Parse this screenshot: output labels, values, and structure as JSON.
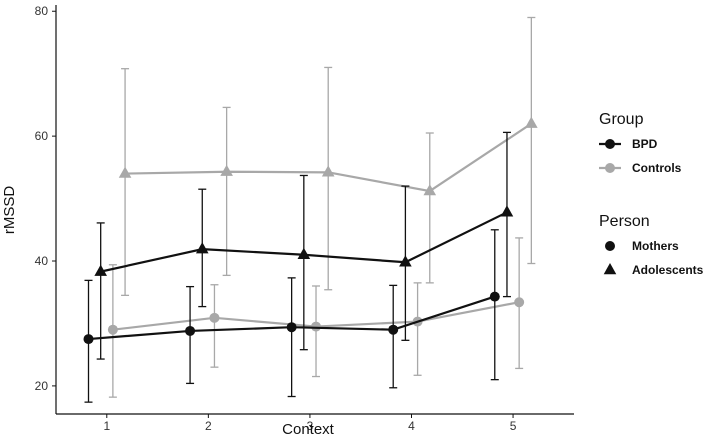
{
  "chart_data": {
    "type": "line",
    "xlabel": "Context",
    "ylabel": "rMSSD",
    "xlim": [
      0.5,
      5.6
    ],
    "ylim": [
      15.5,
      81
    ],
    "x_ticks": [
      1,
      2,
      3,
      4,
      5
    ],
    "y_ticks": [
      20,
      40,
      60,
      80
    ],
    "grid": false,
    "legend_placement": "right",
    "legends": [
      {
        "title": "Group",
        "entries": [
          {
            "label": "BPD",
            "color": "#111111",
            "shape": "circle",
            "line": true
          },
          {
            "label": "Controls",
            "color": "#a8a8a8",
            "shape": "circle",
            "line": true
          }
        ]
      },
      {
        "title": "Person",
        "entries": [
          {
            "label": "Mothers",
            "color": "#111111",
            "shape": "circle",
            "line": false
          },
          {
            "label": "Adolescents",
            "color": "#111111",
            "shape": "triangle",
            "line": false
          }
        ]
      }
    ],
    "series": [
      {
        "group": "Controls",
        "person": "Adolescents",
        "color": "#a8a8a8",
        "shape": "triangle",
        "x": [
          1.18,
          2.18,
          3.18,
          4.18,
          5.18
        ],
        "y": [
          54.0,
          54.3,
          54.2,
          51.2,
          62.0
        ],
        "err_low": [
          34.5,
          37.7,
          35.4,
          36.5,
          39.6
        ],
        "err_high": [
          70.8,
          64.6,
          71.0,
          60.5,
          79.0
        ]
      },
      {
        "group": "Controls",
        "person": "Mothers",
        "color": "#a8a8a8",
        "shape": "circle",
        "x": [
          1.06,
          2.06,
          3.06,
          4.06,
          5.06
        ],
        "y": [
          29.0,
          30.9,
          29.5,
          30.3,
          33.4
        ],
        "err_low": [
          18.2,
          23.0,
          21.5,
          21.7,
          22.8
        ],
        "err_high": [
          39.4,
          36.2,
          36.0,
          36.5,
          43.7
        ]
      },
      {
        "group": "BPD",
        "person": "Adolescents",
        "color": "#111111",
        "shape": "triangle",
        "x": [
          0.94,
          1.94,
          2.94,
          3.94,
          4.94
        ],
        "y": [
          38.3,
          41.9,
          41.0,
          39.8,
          47.8
        ],
        "err_low": [
          24.3,
          32.7,
          25.8,
          27.3,
          34.3
        ],
        "err_high": [
          46.1,
          51.5,
          53.7,
          52.0,
          60.6
        ]
      },
      {
        "group": "BPD",
        "person": "Mothers",
        "color": "#111111",
        "shape": "circle",
        "x": [
          0.82,
          1.82,
          2.82,
          3.82,
          4.82
        ],
        "y": [
          27.5,
          28.8,
          29.4,
          29.0,
          34.3
        ],
        "err_low": [
          17.4,
          20.4,
          18.3,
          19.7,
          21.0
        ],
        "err_high": [
          36.9,
          35.9,
          37.3,
          36.1,
          45.0
        ]
      }
    ]
  }
}
